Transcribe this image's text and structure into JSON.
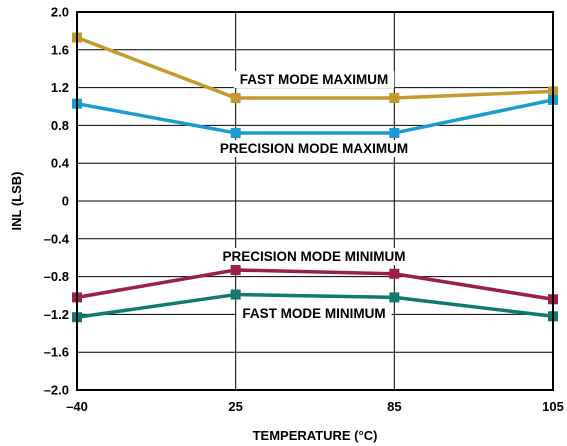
{
  "chart_data": {
    "type": "line",
    "xlabel": "TEMPERATURE (°C)",
    "ylabel": "INL (LSB)",
    "x": [
      "–40",
      "25",
      "85",
      "105"
    ],
    "ylim": [
      -2.0,
      2.0
    ],
    "yticks": [
      "2.0",
      "1.6",
      "1.2",
      "0.8",
      "0.4",
      "0",
      "–0.4",
      "–0.8",
      "–1.2",
      "–1.6",
      "–2.0"
    ],
    "grid": true,
    "series": [
      {
        "name": "FAST MODE MAXIMUM",
        "values": [
          1.73,
          1.09,
          1.09,
          1.16
        ],
        "color": "#c49a2c"
      },
      {
        "name": "PRECISION MODE MAXIMUM",
        "values": [
          1.03,
          0.72,
          0.72,
          1.07
        ],
        "color": "#1b9bd1"
      },
      {
        "name": "PRECISION MODE MINIMUM",
        "values": [
          -1.02,
          -0.73,
          -0.77,
          -1.04
        ],
        "color": "#9b1f4b"
      },
      {
        "name": "FAST MODE MINIMUM",
        "values": [
          -1.23,
          -0.99,
          -1.02,
          -1.22
        ],
        "color": "#0f7a6e"
      }
    ]
  }
}
